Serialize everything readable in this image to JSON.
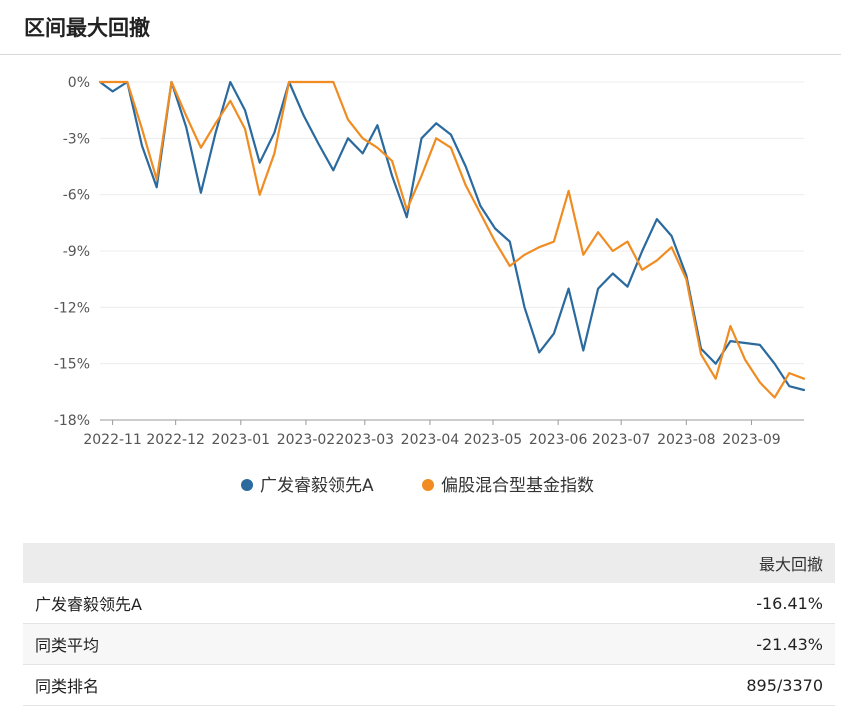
{
  "header": {
    "title": "区间最大回撤"
  },
  "chart_data": {
    "type": "line",
    "x": [
      "2022-10-26",
      "2022-11-01",
      "2022-11-08",
      "2022-11-15",
      "2022-11-22",
      "2022-11-29",
      "2022-12-06",
      "2022-12-13",
      "2022-12-20",
      "2022-12-27",
      "2023-01-03",
      "2023-01-10",
      "2023-01-17",
      "2023-01-24",
      "2023-01-31",
      "2023-02-07",
      "2023-02-14",
      "2023-02-21",
      "2023-02-28",
      "2023-03-07",
      "2023-03-14",
      "2023-03-21",
      "2023-03-28",
      "2023-04-04",
      "2023-04-11",
      "2023-04-18",
      "2023-04-25",
      "2023-05-02",
      "2023-05-09",
      "2023-05-16",
      "2023-05-23",
      "2023-05-30",
      "2023-06-06",
      "2023-06-13",
      "2023-06-20",
      "2023-06-27",
      "2023-07-04",
      "2023-07-11",
      "2023-07-18",
      "2023-07-25",
      "2023-08-01",
      "2023-08-08",
      "2023-08-15",
      "2023-08-22",
      "2023-08-29",
      "2023-09-05",
      "2023-09-12",
      "2023-09-19",
      "2023-09-26"
    ],
    "series": [
      {
        "name": "广发睿毅领先A",
        "color": "#2b6a9e",
        "values": [
          0,
          -0.5,
          0,
          -3.4,
          -5.6,
          0,
          -2.4,
          -5.9,
          -2.7,
          0,
          -1.5,
          -4.3,
          -2.7,
          0,
          -1.8,
          -3.3,
          -4.7,
          -3.0,
          -3.8,
          -2.3,
          -5.0,
          -7.2,
          -3.0,
          -2.2,
          -2.8,
          -4.5,
          -6.6,
          -7.8,
          -8.5,
          -12.0,
          -14.4,
          -13.4,
          -11.0,
          -14.3,
          -11.0,
          -10.2,
          -10.9,
          -9.0,
          -7.3,
          -8.2,
          -10.3,
          -14.2,
          -15.0,
          -13.8,
          -13.9,
          -14.0,
          -15.0,
          -16.2,
          -16.4
        ]
      },
      {
        "name": "偏股混合型基金指数",
        "color": "#f08c21",
        "values": [
          0,
          0,
          0,
          -2.5,
          -5.2,
          0,
          -1.8,
          -3.5,
          -2.2,
          -1.0,
          -2.5,
          -6.0,
          -3.8,
          0,
          0,
          0,
          0,
          -2.0,
          -3.0,
          -3.5,
          -4.2,
          -6.8,
          -5.0,
          -3.0,
          -3.5,
          -5.5,
          -7.0,
          -8.5,
          -9.8,
          -9.2,
          -8.8,
          -8.5,
          -5.8,
          -9.2,
          -8.0,
          -9.0,
          -8.5,
          -10.0,
          -9.5,
          -8.8,
          -10.5,
          -14.5,
          -15.8,
          -13.0,
          -14.8,
          -16.0,
          -16.8,
          -15.5,
          -15.8
        ]
      }
    ],
    "xtick_labels": [
      "2022-11",
      "2022-12",
      "2023-01",
      "2023-02",
      "2023-03",
      "2023-04",
      "2023-05",
      "2023-06",
      "2023-07",
      "2023-08",
      "2023-09"
    ],
    "yticks": [
      0,
      -3,
      -6,
      -9,
      -12,
      -15,
      -18
    ],
    "ytick_labels": [
      "0%",
      "-3%",
      "-6%",
      "-9%",
      "-12%",
      "-15%",
      "-18%"
    ],
    "ylim": [
      -18,
      0
    ],
    "grid": true,
    "legend": "bottom-center"
  },
  "table": {
    "header": "最大回撤",
    "rows": [
      {
        "label": "广发睿毅领先A",
        "value": "-16.41%"
      },
      {
        "label": "同类平均",
        "value": "-21.43%"
      },
      {
        "label": "同类排名",
        "value": "895/3370"
      }
    ]
  }
}
